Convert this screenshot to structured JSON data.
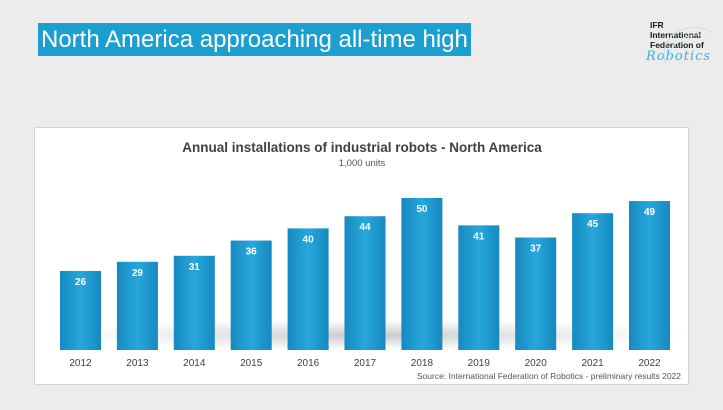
{
  "headline": "North America approaching all-time high",
  "logo": {
    "line1": "IFR",
    "line2": "International",
    "line3": "Federation of",
    "script": "Robotics"
  },
  "chart_data": {
    "type": "bar",
    "title": "Annual installations of industrial robots - North America",
    "subtitle": "1,000 units",
    "categories": [
      "2012",
      "2013",
      "2014",
      "2015",
      "2016",
      "2017",
      "2018",
      "2019",
      "2020",
      "2021",
      "2022"
    ],
    "values": [
      26,
      29,
      31,
      36,
      40,
      44,
      50,
      41,
      37,
      45,
      49
    ],
    "ylim": [
      0,
      50
    ],
    "grid": false,
    "legend": "none",
    "bar_color": "#1e9ed3",
    "source": "Source: International Federation of Robotics - preliminary results 2022"
  }
}
